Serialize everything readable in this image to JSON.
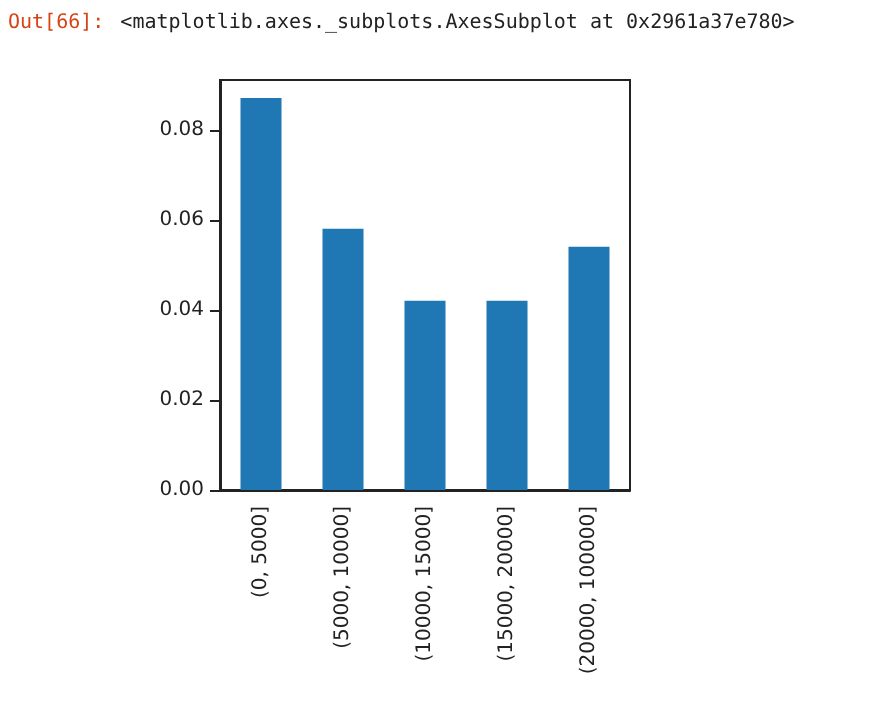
{
  "chart_data": {
    "type": "bar",
    "categories": [
      "(0, 5000]",
      "(5000, 10000]",
      "(10000, 15000]",
      "(15000, 20000]",
      "(20000, 100000]"
    ],
    "values": [
      0.087,
      0.058,
      0.042,
      0.042,
      0.054
    ],
    "color": "#1f77b4",
    "ylim": [
      0,
      0.091
    ],
    "yticks": [
      {
        "value": 0,
        "label": "0.00"
      },
      {
        "value": 0.02,
        "label": "0.02"
      },
      {
        "value": 0.04,
        "label": "0.04"
      },
      {
        "value": 0.06,
        "label": "0.06"
      },
      {
        "value": 0.08,
        "label": "0.08"
      }
    ],
    "annotations": [
      "Out[66]:",
      "<matplotlib.axes._subplots.AxesSubplot at 0x2961a37e780>"
    ],
    "grid": false
  }
}
